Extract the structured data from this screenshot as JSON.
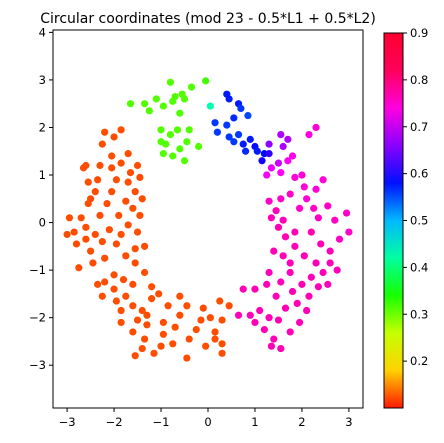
{
  "chart_data": {
    "type": "scatter",
    "title": "Circular coordinates (mod 23 - 0.5*L1 + 0.5*L2)",
    "xlabel": "",
    "ylabel": "",
    "xlim": [
      -3.3,
      3.3
    ],
    "ylim": [
      -3.9,
      4.05
    ],
    "x_ticks": [
      -3,
      -2,
      -1,
      0,
      1,
      2,
      3
    ],
    "y_ticks": [
      -3,
      -2,
      -1,
      0,
      1,
      2,
      3,
      4
    ],
    "grid": false,
    "colormap": "hsv",
    "colorbar": {
      "range": [
        0.1,
        0.9
      ],
      "ticks": [
        0.2,
        0.3,
        0.4,
        0.5,
        0.6,
        0.7,
        0.8,
        0.9
      ],
      "tick_labels": [
        "0.2",
        "0.3",
        "0.4",
        "0.5",
        "0.6",
        "0.7",
        "0.8",
        "0.9"
      ]
    },
    "points": [
      [
        -0.05,
        2.98,
        0.29
      ],
      [
        -0.35,
        2.85,
        0.28
      ],
      [
        -0.55,
        2.7,
        0.28
      ],
      [
        -0.8,
        2.95,
        0.28
      ],
      [
        -1.1,
        2.6,
        0.28
      ],
      [
        -1.35,
        2.5,
        0.28
      ],
      [
        -1.65,
        2.5,
        0.28
      ],
      [
        -0.7,
        2.65,
        0.28
      ],
      [
        -0.95,
        2.45,
        0.28
      ],
      [
        -1.25,
        2.35,
        0.28
      ],
      [
        -0.6,
        2.3,
        0.28
      ],
      [
        -0.75,
        2.55,
        0.28
      ],
      [
        -0.5,
        2.6,
        0.28
      ],
      [
        -1.0,
        1.95,
        0.28
      ],
      [
        -0.8,
        1.85,
        0.28
      ],
      [
        -0.6,
        1.55,
        0.28
      ],
      [
        -0.75,
        1.4,
        0.28
      ],
      [
        -0.95,
        1.45,
        0.28
      ],
      [
        -0.45,
        1.7,
        0.28
      ],
      [
        -0.2,
        1.6,
        0.28
      ],
      [
        -0.5,
        1.3,
        0.28
      ],
      [
        -0.9,
        1.65,
        0.28
      ],
      [
        -0.65,
        1.95,
        0.28
      ],
      [
        -1.0,
        1.7,
        0.28
      ],
      [
        -0.4,
        1.95,
        0.28
      ],
      [
        0.05,
        2.45,
        0.45
      ],
      [
        0.4,
        2.7,
        0.65
      ],
      [
        0.45,
        2.6,
        0.65
      ],
      [
        0.65,
        2.5,
        0.65
      ],
      [
        0.7,
        2.4,
        0.63
      ],
      [
        0.85,
        2.25,
        0.62
      ],
      [
        0.15,
        2.1,
        0.63
      ],
      [
        0.2,
        1.9,
        0.63
      ],
      [
        0.45,
        1.8,
        0.63
      ],
      [
        0.55,
        1.7,
        0.63
      ],
      [
        0.65,
        1.85,
        0.63
      ],
      [
        0.75,
        1.65,
        0.65
      ],
      [
        0.9,
        1.75,
        0.65
      ],
      [
        1.0,
        1.6,
        0.66
      ],
      [
        1.2,
        1.45,
        0.66
      ],
      [
        1.05,
        1.5,
        0.65
      ],
      [
        0.8,
        1.5,
        0.64
      ],
      [
        0.55,
        2.2,
        0.64
      ],
      [
        1.15,
        1.3,
        0.68
      ],
      [
        1.3,
        1.45,
        0.7
      ],
      [
        0.4,
        2.05,
        0.63
      ],
      [
        1.3,
        1.65,
        0.76
      ],
      [
        1.55,
        1.85,
        0.78
      ],
      [
        1.6,
        1.6,
        0.78
      ],
      [
        1.7,
        1.75,
        0.78
      ],
      [
        1.5,
        1.25,
        0.8
      ],
      [
        1.35,
        1.15,
        0.82
      ],
      [
        1.25,
        1.0,
        0.83
      ],
      [
        1.55,
        1.05,
        0.84
      ],
      [
        1.7,
        1.3,
        0.84
      ],
      [
        1.8,
        1.4,
        0.85
      ],
      [
        1.85,
        0.95,
        0.86
      ],
      [
        2.05,
        0.75,
        0.86
      ],
      [
        2.0,
        1.0,
        0.86
      ],
      [
        1.75,
        0.6,
        0.87
      ],
      [
        1.55,
        0.5,
        0.87
      ],
      [
        1.3,
        0.45,
        0.87
      ],
      [
        1.35,
        0.1,
        0.88
      ],
      [
        1.5,
        -0.1,
        0.88
      ],
      [
        1.65,
        -0.3,
        0.88
      ],
      [
        1.85,
        -0.5,
        0.88
      ],
      [
        1.45,
        0.25,
        0.88
      ],
      [
        1.95,
        0.3,
        0.87
      ],
      [
        2.1,
        0.5,
        0.86
      ],
      [
        2.25,
        0.3,
        0.87
      ],
      [
        2.35,
        0.1,
        0.87
      ],
      [
        2.2,
        -0.2,
        0.88
      ],
      [
        2.4,
        -0.45,
        0.88
      ],
      [
        2.6,
        -0.6,
        0.88
      ],
      [
        2.8,
        -0.35,
        0.87
      ],
      [
        2.95,
        0.2,
        0.87
      ],
      [
        3.0,
        -0.2,
        0.87
      ],
      [
        2.7,
        0.05,
        0.87
      ],
      [
        2.55,
        0.35,
        0.87
      ],
      [
        2.3,
        0.7,
        0.86
      ],
      [
        2.15,
        1.85,
        0.85
      ],
      [
        2.45,
        0.9,
        0.86
      ],
      [
        2.6,
        -0.85,
        0.88
      ],
      [
        2.75,
        -1.0,
        0.88
      ],
      [
        2.45,
        -1.05,
        0.88
      ],
      [
        2.2,
        -1.15,
        0.88
      ],
      [
        2.0,
        -1.3,
        0.88
      ],
      [
        1.8,
        -1.45,
        0.88
      ],
      [
        1.55,
        -1.25,
        0.88
      ],
      [
        1.3,
        -1.05,
        0.88
      ],
      [
        1.25,
        -1.3,
        0.88
      ],
      [
        1.45,
        -1.55,
        0.88
      ],
      [
        1.65,
        -1.8,
        0.88
      ],
      [
        1.9,
        -1.7,
        0.88
      ],
      [
        2.15,
        -1.55,
        0.88
      ],
      [
        2.35,
        -1.35,
        0.88
      ],
      [
        2.1,
        -1.85,
        0.88
      ],
      [
        1.95,
        -2.1,
        0.88
      ],
      [
        1.75,
        -2.3,
        0.88
      ],
      [
        1.5,
        -2.05,
        0.88
      ],
      [
        1.3,
        -2.0,
        0.88
      ],
      [
        1.1,
        -1.85,
        0.88
      ],
      [
        0.9,
        -1.95,
        0.88
      ],
      [
        0.65,
        -1.95,
        0.88
      ],
      [
        0.75,
        -1.4,
        0.88
      ],
      [
        1.0,
        -1.4,
        0.88
      ],
      [
        1.2,
        -2.25,
        0.88
      ],
      [
        1.4,
        -2.45,
        0.88
      ],
      [
        1.55,
        -2.65,
        0.88
      ],
      [
        1.35,
        -2.6,
        0.88
      ],
      [
        1.0,
        -2.1,
        0.88
      ],
      [
        1.75,
        -1.05,
        0.88
      ],
      [
        1.6,
        -0.7,
        0.88
      ],
      [
        1.4,
        -0.6,
        0.88
      ],
      [
        1.75,
        -0.85,
        0.88
      ],
      [
        2.05,
        -0.7,
        0.88
      ],
      [
        2.3,
        -0.85,
        0.88
      ],
      [
        2.55,
        -1.3,
        0.88
      ],
      [
        1.85,
        -0.2,
        0.88
      ],
      [
        1.6,
        0.05,
        0.88
      ],
      [
        2.3,
        2.0,
        0.86
      ],
      [
        -2.95,
        0.1,
        0.05
      ],
      [
        -3.0,
        -0.25,
        0.05
      ],
      [
        -2.8,
        -0.45,
        0.05
      ],
      [
        -2.75,
        -0.95,
        0.05
      ],
      [
        -2.7,
        0.1,
        0.05
      ],
      [
        -2.6,
        -0.35,
        0.05
      ],
      [
        -2.5,
        -0.6,
        0.05
      ],
      [
        -2.4,
        -0.25,
        0.05
      ],
      [
        -2.55,
        0.4,
        0.05
      ],
      [
        -2.4,
        0.65,
        0.05
      ],
      [
        -2.55,
        0.85,
        0.05
      ],
      [
        -2.65,
        1.15,
        0.05
      ],
      [
        -2.6,
        1.2,
        0.05
      ],
      [
        -2.5,
        0.5,
        0.05
      ],
      [
        -2.3,
        0.15,
        0.05
      ],
      [
        -2.15,
        0.4,
        0.05
      ],
      [
        -2.35,
        0.9,
        0.05
      ],
      [
        -2.1,
        -0.15,
        0.05
      ],
      [
        -1.95,
        -0.45,
        0.05
      ],
      [
        -2.2,
        -0.75,
        0.05
      ],
      [
        -2.45,
        -0.85,
        0.05
      ],
      [
        -2.2,
        -1.25,
        0.05
      ],
      [
        -2.0,
        -1.1,
        0.05
      ],
      [
        -2.35,
        -1.3,
        0.05
      ],
      [
        -2.25,
        -1.55,
        0.05
      ],
      [
        -2.0,
        -1.4,
        0.05
      ],
      [
        -1.8,
        -1.2,
        0.05
      ],
      [
        -1.6,
        -1.3,
        0.05
      ],
      [
        -1.55,
        -0.85,
        0.05
      ],
      [
        -1.75,
        -0.7,
        0.05
      ],
      [
        -1.85,
        -0.25,
        0.05
      ],
      [
        -1.7,
        -0.05,
        0.05
      ],
      [
        -1.6,
        0.3,
        0.05
      ],
      [
        -1.75,
        0.45,
        0.05
      ],
      [
        -1.9,
        0.15,
        0.05
      ],
      [
        -2.05,
        0.65,
        0.05
      ],
      [
        -1.95,
        0.9,
        0.05
      ],
      [
        -1.7,
        0.85,
        0.05
      ],
      [
        -1.55,
        0.65,
        0.05
      ],
      [
        -1.65,
        1.05,
        0.05
      ],
      [
        -1.85,
        1.25,
        0.05
      ],
      [
        -2.05,
        1.4,
        0.05
      ],
      [
        -2.25,
        1.65,
        0.05
      ],
      [
        -2.0,
        1.8,
        0.05
      ],
      [
        -1.85,
        1.95,
        0.05
      ],
      [
        -2.2,
        1.9,
        0.05
      ],
      [
        -1.7,
        1.45,
        0.05
      ],
      [
        -1.5,
        1.2,
        0.05
      ],
      [
        -1.45,
        0.95,
        0.05
      ],
      [
        -1.4,
        0.5,
        0.05
      ],
      [
        -1.75,
        -1.55,
        0.05
      ],
      [
        -1.85,
        -1.85,
        0.05
      ],
      [
        -1.6,
        -1.75,
        0.05
      ],
      [
        -1.4,
        -1.85,
        0.05
      ],
      [
        -1.2,
        -1.6,
        0.05
      ],
      [
        -1.05,
        -1.5,
        0.05
      ],
      [
        -0.85,
        -1.75,
        0.05
      ],
      [
        -0.6,
        -1.95,
        0.05
      ],
      [
        -0.7,
        -2.2,
        0.05
      ],
      [
        -0.95,
        -2.1,
        0.05
      ],
      [
        -1.3,
        -2.15,
        0.05
      ],
      [
        -1.5,
        -2.05,
        0.05
      ],
      [
        -1.85,
        -2.1,
        0.05
      ],
      [
        -1.6,
        -2.3,
        0.05
      ],
      [
        -1.35,
        -2.45,
        0.05
      ],
      [
        -1.4,
        -2.65,
        0.05
      ],
      [
        -1.15,
        -2.75,
        0.05
      ],
      [
        -1.0,
        -2.6,
        0.05
      ],
      [
        -0.95,
        -2.35,
        0.05
      ],
      [
        -0.75,
        -2.55,
        0.05
      ],
      [
        -0.4,
        -2.45,
        0.05
      ],
      [
        -0.45,
        -2.85,
        0.05
      ],
      [
        -0.25,
        -2.25,
        0.05
      ],
      [
        -0.15,
        -2.05,
        0.05
      ],
      [
        -0.1,
        -1.8,
        0.05
      ],
      [
        0.05,
        -2.0,
        0.05
      ],
      [
        0.15,
        -2.3,
        0.05
      ],
      [
        0.3,
        -2.55,
        0.05
      ],
      [
        0.3,
        -2.05,
        0.05
      ],
      [
        0.45,
        -1.75,
        0.05
      ],
      [
        0.15,
        -2.45,
        0.05
      ],
      [
        -0.05,
        -2.6,
        0.05
      ],
      [
        0.25,
        -1.65,
        0.05
      ],
      [
        -0.45,
        -1.75,
        0.05
      ],
      [
        -0.6,
        -1.55,
        0.05
      ],
      [
        -1.2,
        -1.35,
        0.05
      ],
      [
        -1.35,
        -1.05,
        0.05
      ],
      [
        -1.55,
        -0.55,
        0.05
      ],
      [
        -1.95,
        -1.65,
        0.05
      ],
      [
        -1.3,
        -1.95,
        0.05
      ],
      [
        0.3,
        -2.75,
        0.05
      ],
      [
        -1.55,
        -2.8,
        0.05
      ],
      [
        -2.25,
        -0.4,
        0.05
      ],
      [
        -2.85,
        -0.2,
        0.05
      ],
      [
        -2.6,
        -0.1,
        0.05
      ],
      [
        -1.45,
        0.15,
        0.05
      ],
      [
        -1.5,
        -0.2,
        0.05
      ],
      [
        -1.35,
        -0.5,
        0.05
      ],
      [
        -2.3,
        1.2,
        0.05
      ],
      [
        -2.05,
        1.15,
        0.05
      ]
    ]
  }
}
